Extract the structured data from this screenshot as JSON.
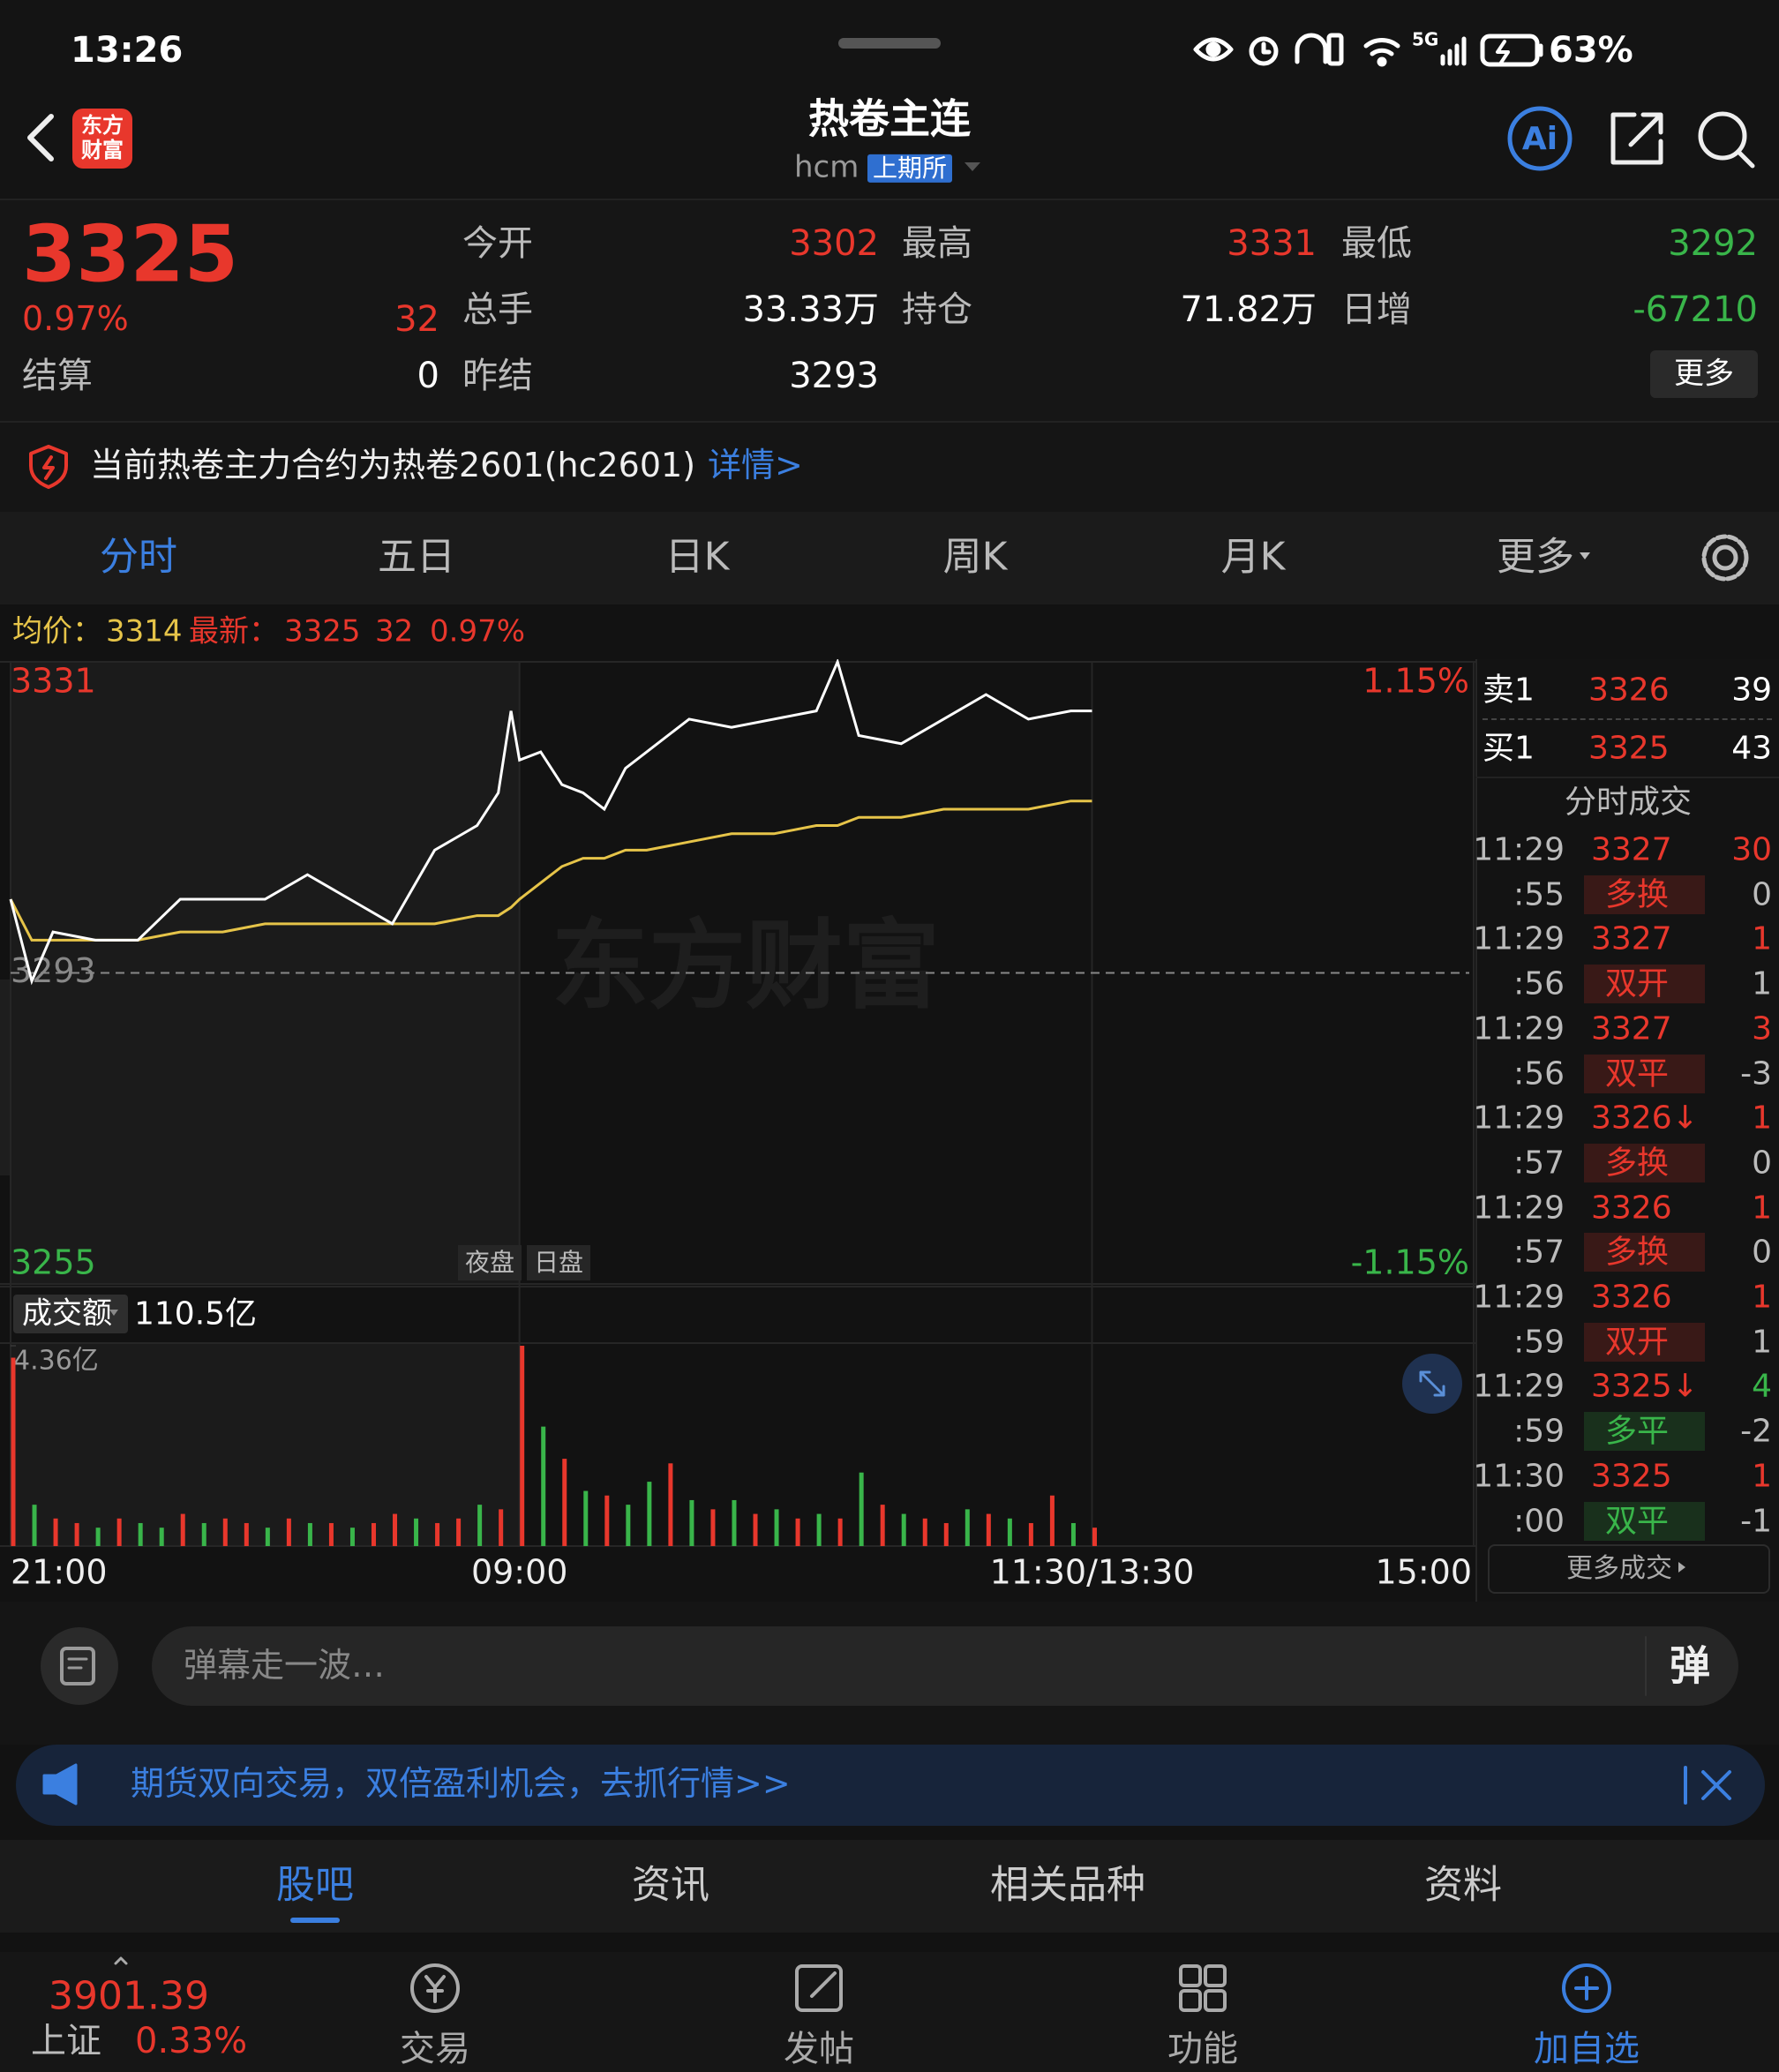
{
  "status_bar": {
    "time": "13:26",
    "network": "5G",
    "battery": "63%"
  },
  "header": {
    "logo": [
      "东方",
      "财富"
    ],
    "title": "热卷主连",
    "code": "hcm",
    "exchange": "上期所"
  },
  "quote": {
    "price": "3325",
    "change_pct": "0.97%",
    "change": "32",
    "settle_label": "结算",
    "settle": "0",
    "fields": [
      {
        "label": "今开",
        "value": "3302",
        "color": "#e8372c"
      },
      {
        "label": "最高",
        "value": "3331",
        "color": "#e8372c"
      },
      {
        "label": "最低",
        "value": "3292",
        "color": "#39b54a"
      },
      {
        "label": "总手",
        "value": "33.33万",
        "color": "#ffffff"
      },
      {
        "label": "持仓",
        "value": "71.82万",
        "color": "#ffffff"
      },
      {
        "label": "日增",
        "value": "-67210",
        "color": "#39b54a"
      },
      {
        "label": "昨结",
        "value": "3293",
        "color": "#ffffff"
      }
    ],
    "more": "更多"
  },
  "notice": {
    "text": "当前热卷主力合约为热卷2601(hc2601)",
    "link": "详情>"
  },
  "tabs": {
    "items": [
      "分时",
      "五日",
      "日K",
      "周K",
      "月K",
      "更多"
    ],
    "active": 0
  },
  "summary": {
    "avg_label": "均价：",
    "avg": "3314",
    "last_label": "最新：",
    "last": "3325",
    "change": "32",
    "change_pct": "0.97%"
  },
  "chart_data": [
    {
      "type": "line",
      "watermark": "东方财富",
      "annotations": [
        "夜盘",
        "日盘"
      ],
      "x": [
        0,
        3,
        5,
        10,
        20,
        30,
        40,
        50,
        60,
        70,
        80,
        90,
        100,
        110,
        115,
        118,
        120,
        125,
        130,
        135,
        140,
        145,
        150,
        160,
        170,
        180,
        190,
        195,
        200,
        210,
        220,
        230,
        240,
        250,
        255
      ],
      "series": [
        {
          "color": "#ffffff",
          "values": [
            3302,
            3296,
            3292,
            3298,
            3297,
            3297,
            3302,
            3302,
            3302,
            3305,
            3302,
            3299,
            3308,
            3311,
            3315,
            3325,
            3319,
            3320,
            3316,
            3315,
            3313,
            3318,
            3320,
            3324,
            3323,
            3324,
            3325,
            3331,
            3322,
            3321,
            3324,
            3327,
            3324,
            3325,
            3325
          ]
        },
        {
          "color": "#e6c449",
          "values": [
            3302,
            3299,
            3297,
            3297,
            3297,
            3297,
            3298,
            3298,
            3299,
            3299,
            3299,
            3299,
            3299,
            3300,
            3300,
            3301,
            3302,
            3304,
            3306,
            3307,
            3307,
            3308,
            3308,
            3309,
            3310,
            3310,
            3311,
            3311,
            3312,
            3312,
            3313,
            3313,
            3313,
            3314,
            3314
          ]
        }
      ],
      "xlim": [
        0,
        345
      ],
      "xticks": [
        {
          "value": 0,
          "label": "21:00"
        },
        {
          "value": 120,
          "label": "09:00"
        },
        {
          "value": 255,
          "label": "11:30/13:30"
        },
        {
          "value": 345,
          "label": "15:00"
        }
      ],
      "ylim": [
        3255,
        3331
      ],
      "yticks": [
        3255,
        3293,
        3331
      ],
      "y2lim": [
        -1.15,
        1.15
      ],
      "y2ticks": [
        {
          "value": -1.15,
          "label": "-1.15%"
        },
        {
          "value": 1.15,
          "label": "1.15%"
        }
      ]
    },
    {
      "type": "bar",
      "title": "成交额",
      "total": "110.5亿",
      "x": [
        0,
        5,
        10,
        15,
        20,
        25,
        30,
        35,
        40,
        45,
        50,
        55,
        60,
        65,
        70,
        75,
        80,
        85,
        90,
        95,
        100,
        105,
        110,
        115,
        120,
        125,
        130,
        135,
        140,
        145,
        150,
        155,
        160,
        165,
        170,
        175,
        180,
        185,
        190,
        195,
        200,
        205,
        210,
        215,
        220,
        225,
        230,
        235,
        240,
        245,
        250,
        255
      ],
      "values": [
        4.1,
        0.9,
        0.6,
        0.5,
        0.4,
        0.6,
        0.5,
        0.4,
        0.7,
        0.5,
        0.6,
        0.5,
        0.4,
        0.6,
        0.5,
        0.5,
        0.4,
        0.5,
        0.7,
        0.6,
        0.5,
        0.6,
        0.9,
        0.8,
        4.36,
        2.6,
        1.9,
        1.2,
        1.1,
        0.9,
        1.4,
        1.8,
        1.0,
        0.8,
        1.0,
        0.7,
        0.8,
        0.6,
        0.7,
        0.6,
        1.6,
        0.9,
        0.7,
        0.6,
        0.5,
        0.8,
        0.7,
        0.6,
        0.5,
        1.1,
        0.5,
        0.4
      ],
      "colors": [
        "#e8372c",
        "#39b54a",
        "#e8372c",
        "#e8372c",
        "#39b54a",
        "#e8372c",
        "#39b54a",
        "#39b54a",
        "#e8372c",
        "#39b54a",
        "#e8372c",
        "#e8372c",
        "#39b54a",
        "#e8372c",
        "#39b54a",
        "#e8372c",
        "#39b54a",
        "#e8372c",
        "#e8372c",
        "#39b54a",
        "#e8372c",
        "#e8372c",
        "#39b54a",
        "#e8372c",
        "#e8372c",
        "#39b54a",
        "#e8372c",
        "#39b54a",
        "#e8372c",
        "#39b54a",
        "#39b54a",
        "#e8372c",
        "#39b54a",
        "#e8372c",
        "#39b54a",
        "#e8372c",
        "#39b54a",
        "#e8372c",
        "#39b54a",
        "#e8372c",
        "#39b54a",
        "#e8372c",
        "#39b54a",
        "#e8372c",
        "#e8372c",
        "#39b54a",
        "#e8372c",
        "#39b54a",
        "#e8372c",
        "#e8372c",
        "#39b54a",
        "#e8372c"
      ],
      "xlim": [
        0,
        345
      ],
      "ylim": [
        0,
        4.36
      ],
      "yticks": [
        {
          "value": 4.36,
          "label": "4.36亿"
        }
      ]
    }
  ],
  "order_book": [
    {
      "label": "卖1",
      "price": "3326",
      "volume": "39"
    },
    {
      "label": "买1",
      "price": "3325",
      "volume": "43"
    }
  ],
  "trades": {
    "title": "分时成交",
    "more": "更多成交",
    "rows": [
      {
        "time": "11:29",
        "price": "3327",
        "volume": "30",
        "volume_color": "#e8372c",
        "sub_time": ":55",
        "kind": "多换",
        "change": "0",
        "kind_color": "#e8372c"
      },
      {
        "time": "11:29",
        "price": "3327",
        "volume": "1",
        "volume_color": "#e8372c",
        "sub_time": ":56",
        "kind": "双开",
        "change": "1",
        "kind_color": "#e8372c"
      },
      {
        "time": "11:29",
        "price": "3327",
        "volume": "3",
        "volume_color": "#e8372c",
        "sub_time": ":56",
        "kind": "双平",
        "change": "-3",
        "kind_color": "#e8372c"
      },
      {
        "time": "11:29",
        "price": "3326↓",
        "volume": "1",
        "volume_color": "#e8372c",
        "sub_time": ":57",
        "kind": "多换",
        "change": "0",
        "kind_color": "#e8372c"
      },
      {
        "time": "11:29",
        "price": "3326",
        "volume": "1",
        "volume_color": "#e8372c",
        "sub_time": ":57",
        "kind": "多换",
        "change": "0",
        "kind_color": "#e8372c"
      },
      {
        "time": "11:29",
        "price": "3326",
        "volume": "1",
        "volume_color": "#e8372c",
        "sub_time": ":59",
        "kind": "双开",
        "change": "1",
        "kind_color": "#e8372c"
      },
      {
        "time": "11:29",
        "price": "3325↓",
        "volume": "4",
        "volume_color": "#39b54a",
        "sub_time": ":59",
        "kind": "多平",
        "change": "-2",
        "kind_color": "#39b54a"
      },
      {
        "time": "11:30",
        "price": "3325",
        "volume": "1",
        "volume_color": "#e8372c",
        "sub_time": ":00",
        "kind": "双平",
        "change": "-1",
        "kind_color": "#39b54a"
      }
    ]
  },
  "danmu": {
    "placeholder": "弹幕走一波…",
    "button": "弹"
  },
  "banner": {
    "text": "期货双向交易，双倍盈利机会，去抓行情>>"
  },
  "bottom_tabs": {
    "items": [
      "股吧",
      "资讯",
      "相关品种",
      "资料"
    ],
    "active": 0
  },
  "nav": {
    "index_value": "3901.39",
    "index_name": "上证",
    "index_change": "0.33%",
    "items": [
      "交易",
      "发帖",
      "功能",
      "加自选"
    ]
  }
}
